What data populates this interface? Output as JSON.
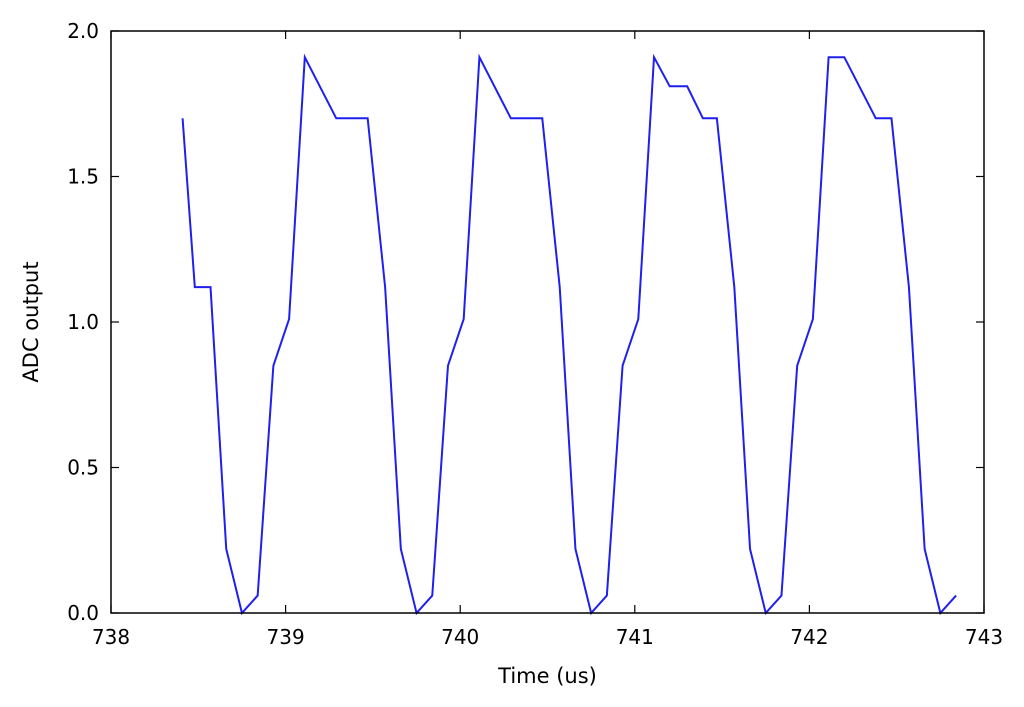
{
  "chart_data": {
    "type": "line",
    "title": "",
    "xlabel": "Time (us)",
    "ylabel": "ADC output",
    "xlim": [
      738,
      743
    ],
    "ylim": [
      0.0,
      2.0
    ],
    "x_ticks": [
      738,
      739,
      740,
      741,
      742,
      743
    ],
    "x_tick_labels": [
      "738",
      "739",
      "740",
      "741",
      "742",
      "743"
    ],
    "y_ticks": [
      0.0,
      0.5,
      1.0,
      1.5,
      2.0
    ],
    "y_tick_labels": [
      "0.0",
      "0.5",
      "1.0",
      "1.5",
      "2.0"
    ],
    "grid": false,
    "legend": "none",
    "series": [
      {
        "color": "#1f1ff0",
        "points": [
          [
            738.41,
            1.7
          ],
          [
            738.48,
            1.12
          ],
          [
            738.57,
            1.12
          ],
          [
            738.66,
            0.22
          ],
          [
            738.75,
            0.0
          ],
          [
            738.84,
            0.06
          ],
          [
            738.93,
            0.85
          ],
          [
            739.02,
            1.01
          ],
          [
            739.11,
            1.91
          ],
          [
            739.29,
            1.7
          ],
          [
            739.47,
            1.7
          ],
          [
            739.57,
            1.12
          ],
          [
            739.66,
            0.22
          ],
          [
            739.75,
            0.0
          ],
          [
            739.84,
            0.06
          ],
          [
            739.93,
            0.85
          ],
          [
            740.02,
            1.01
          ],
          [
            740.11,
            1.91
          ],
          [
            740.29,
            1.7
          ],
          [
            740.47,
            1.7
          ],
          [
            740.57,
            1.12
          ],
          [
            740.66,
            0.22
          ],
          [
            740.75,
            0.0
          ],
          [
            740.84,
            0.06
          ],
          [
            740.93,
            0.85
          ],
          [
            741.02,
            1.01
          ],
          [
            741.11,
            1.91
          ],
          [
            741.2,
            1.81
          ],
          [
            741.3,
            1.81
          ],
          [
            741.39,
            1.7
          ],
          [
            741.47,
            1.7
          ],
          [
            741.57,
            1.12
          ],
          [
            741.66,
            0.22
          ],
          [
            741.75,
            0.0
          ],
          [
            741.84,
            0.06
          ],
          [
            741.93,
            0.85
          ],
          [
            742.02,
            1.01
          ],
          [
            742.11,
            1.91
          ],
          [
            742.2,
            1.91
          ],
          [
            742.38,
            1.7
          ],
          [
            742.47,
            1.7
          ],
          [
            742.57,
            1.12
          ],
          [
            742.66,
            0.22
          ],
          [
            742.75,
            0.0
          ],
          [
            742.84,
            0.06
          ]
        ]
      }
    ]
  }
}
